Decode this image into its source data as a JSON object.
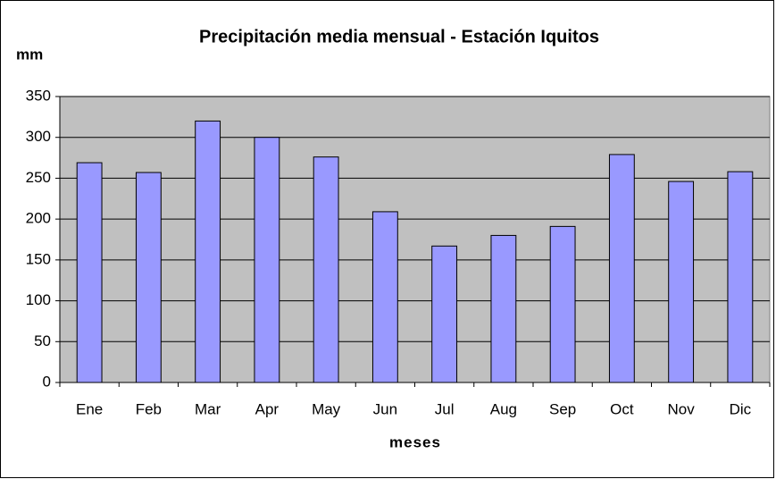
{
  "chart_data": {
    "type": "bar",
    "title": "Precipitación media mensual - Estación Iquitos",
    "y_label": "mm",
    "x_label": "meses",
    "categories": [
      "Ene",
      "Feb",
      "Mar",
      "Apr",
      "May",
      "Jun",
      "Jul",
      "Aug",
      "Sep",
      "Oct",
      "Nov",
      "Dic"
    ],
    "values": [
      269,
      257,
      320,
      300,
      276,
      209,
      167,
      180,
      191,
      279,
      246,
      258
    ],
    "color": "#9999ff",
    "plot_background": "#c0c0c0",
    "ylim": [
      0,
      350
    ],
    "yticks": [
      0,
      50,
      100,
      150,
      200,
      250,
      300,
      350
    ],
    "grid": true
  }
}
